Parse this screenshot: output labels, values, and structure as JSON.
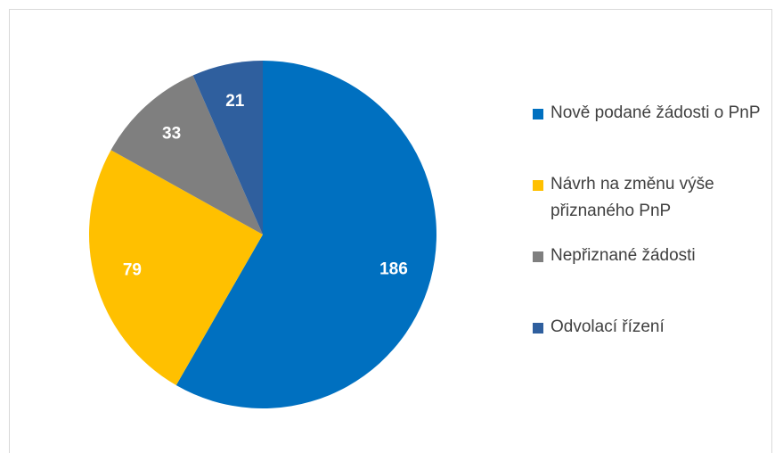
{
  "chart_data": {
    "type": "pie",
    "categories": [
      "Nově podané žádosti o PnP",
      "Návrh na změnu výše přiznaného PnP",
      "Nepřiznané žádosti",
      "Odvolací řízení"
    ],
    "values": [
      186,
      79,
      33,
      21
    ],
    "colors": [
      "#0070c0",
      "#ffc000",
      "#7f7f7f",
      "#2f5f9e"
    ],
    "legend": "right"
  }
}
